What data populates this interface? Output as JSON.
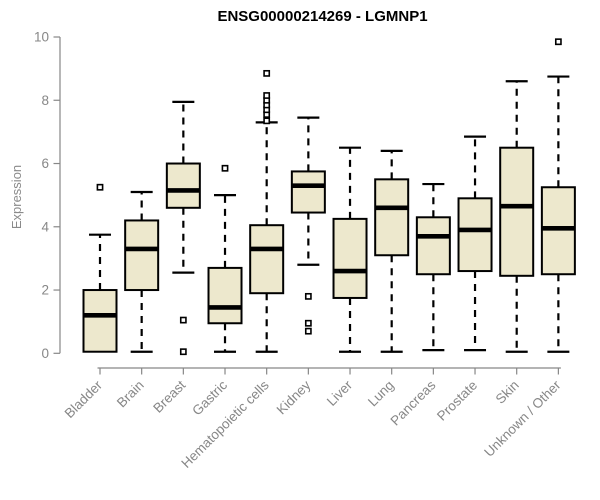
{
  "title": "ENSG00000214269 - LGMNP1",
  "colors": {
    "box_fill": "#EDE8CD",
    "box_border": "#000000",
    "median": "#000000",
    "whisker": "#000000",
    "outlier_fill": "#ffffff",
    "axis": "#878787",
    "tick_text": "#878787",
    "title_text": "#000000"
  },
  "chart_data": {
    "type": "boxplot",
    "title": "ENSG00000214269 - LGMNP1",
    "xlabel": "",
    "ylabel": "Expression",
    "ylim": [
      0,
      10
    ],
    "yticks": [
      0,
      2,
      4,
      6,
      8,
      10
    ],
    "grid": false,
    "legend": "none",
    "categories": [
      "Bladder",
      "Brain",
      "Breast",
      "Gastric",
      "Hematopoietic cells",
      "Kidney",
      "Liver",
      "Lung",
      "Pancreas",
      "Prostate",
      "Skin",
      "Unknown / Other"
    ],
    "series": [
      {
        "name": "Bladder",
        "whisker_low": 0.05,
        "q1": 0.05,
        "median": 1.2,
        "q3": 2.0,
        "whisker_high": 3.75,
        "outliers": [
          5.25
        ]
      },
      {
        "name": "Brain",
        "whisker_low": 0.05,
        "q1": 2.0,
        "median": 3.3,
        "q3": 4.2,
        "whisker_high": 5.1,
        "outliers": []
      },
      {
        "name": "Breast",
        "whisker_low": 2.55,
        "q1": 4.6,
        "median": 5.15,
        "q3": 6.0,
        "whisker_high": 7.95,
        "outliers": [
          1.05,
          0.05
        ]
      },
      {
        "name": "Gastric",
        "whisker_low": 0.05,
        "q1": 0.95,
        "median": 1.45,
        "q3": 2.7,
        "whisker_high": 5.0,
        "outliers": [
          5.85
        ]
      },
      {
        "name": "Hematopoietic cells",
        "whisker_low": 0.05,
        "q1": 1.9,
        "median": 3.3,
        "q3": 4.05,
        "whisker_high": 7.3,
        "outliers": [
          7.35,
          7.55,
          7.7,
          7.85,
          8.0,
          8.15,
          8.85
        ]
      },
      {
        "name": "Kidney",
        "whisker_low": 2.8,
        "q1": 4.45,
        "median": 5.3,
        "q3": 5.75,
        "whisker_high": 7.45,
        "outliers": [
          1.8,
          0.95,
          0.7
        ]
      },
      {
        "name": "Liver",
        "whisker_low": 0.05,
        "q1": 1.75,
        "median": 2.6,
        "q3": 4.25,
        "whisker_high": 6.5,
        "outliers": []
      },
      {
        "name": "Lung",
        "whisker_low": 0.05,
        "q1": 3.1,
        "median": 4.6,
        "q3": 5.5,
        "whisker_high": 6.4,
        "outliers": []
      },
      {
        "name": "Pancreas",
        "whisker_low": 0.1,
        "q1": 2.5,
        "median": 3.7,
        "q3": 4.3,
        "whisker_high": 5.35,
        "outliers": []
      },
      {
        "name": "Prostate",
        "whisker_low": 0.1,
        "q1": 2.6,
        "median": 3.9,
        "q3": 4.9,
        "whisker_high": 6.85,
        "outliers": []
      },
      {
        "name": "Skin",
        "whisker_low": 0.05,
        "q1": 2.45,
        "median": 4.65,
        "q3": 6.5,
        "whisker_high": 8.6,
        "outliers": []
      },
      {
        "name": "Unknown / Other",
        "whisker_low": 0.05,
        "q1": 2.5,
        "median": 3.95,
        "q3": 5.25,
        "whisker_high": 8.75,
        "outliers": [
          9.85
        ]
      }
    ]
  }
}
